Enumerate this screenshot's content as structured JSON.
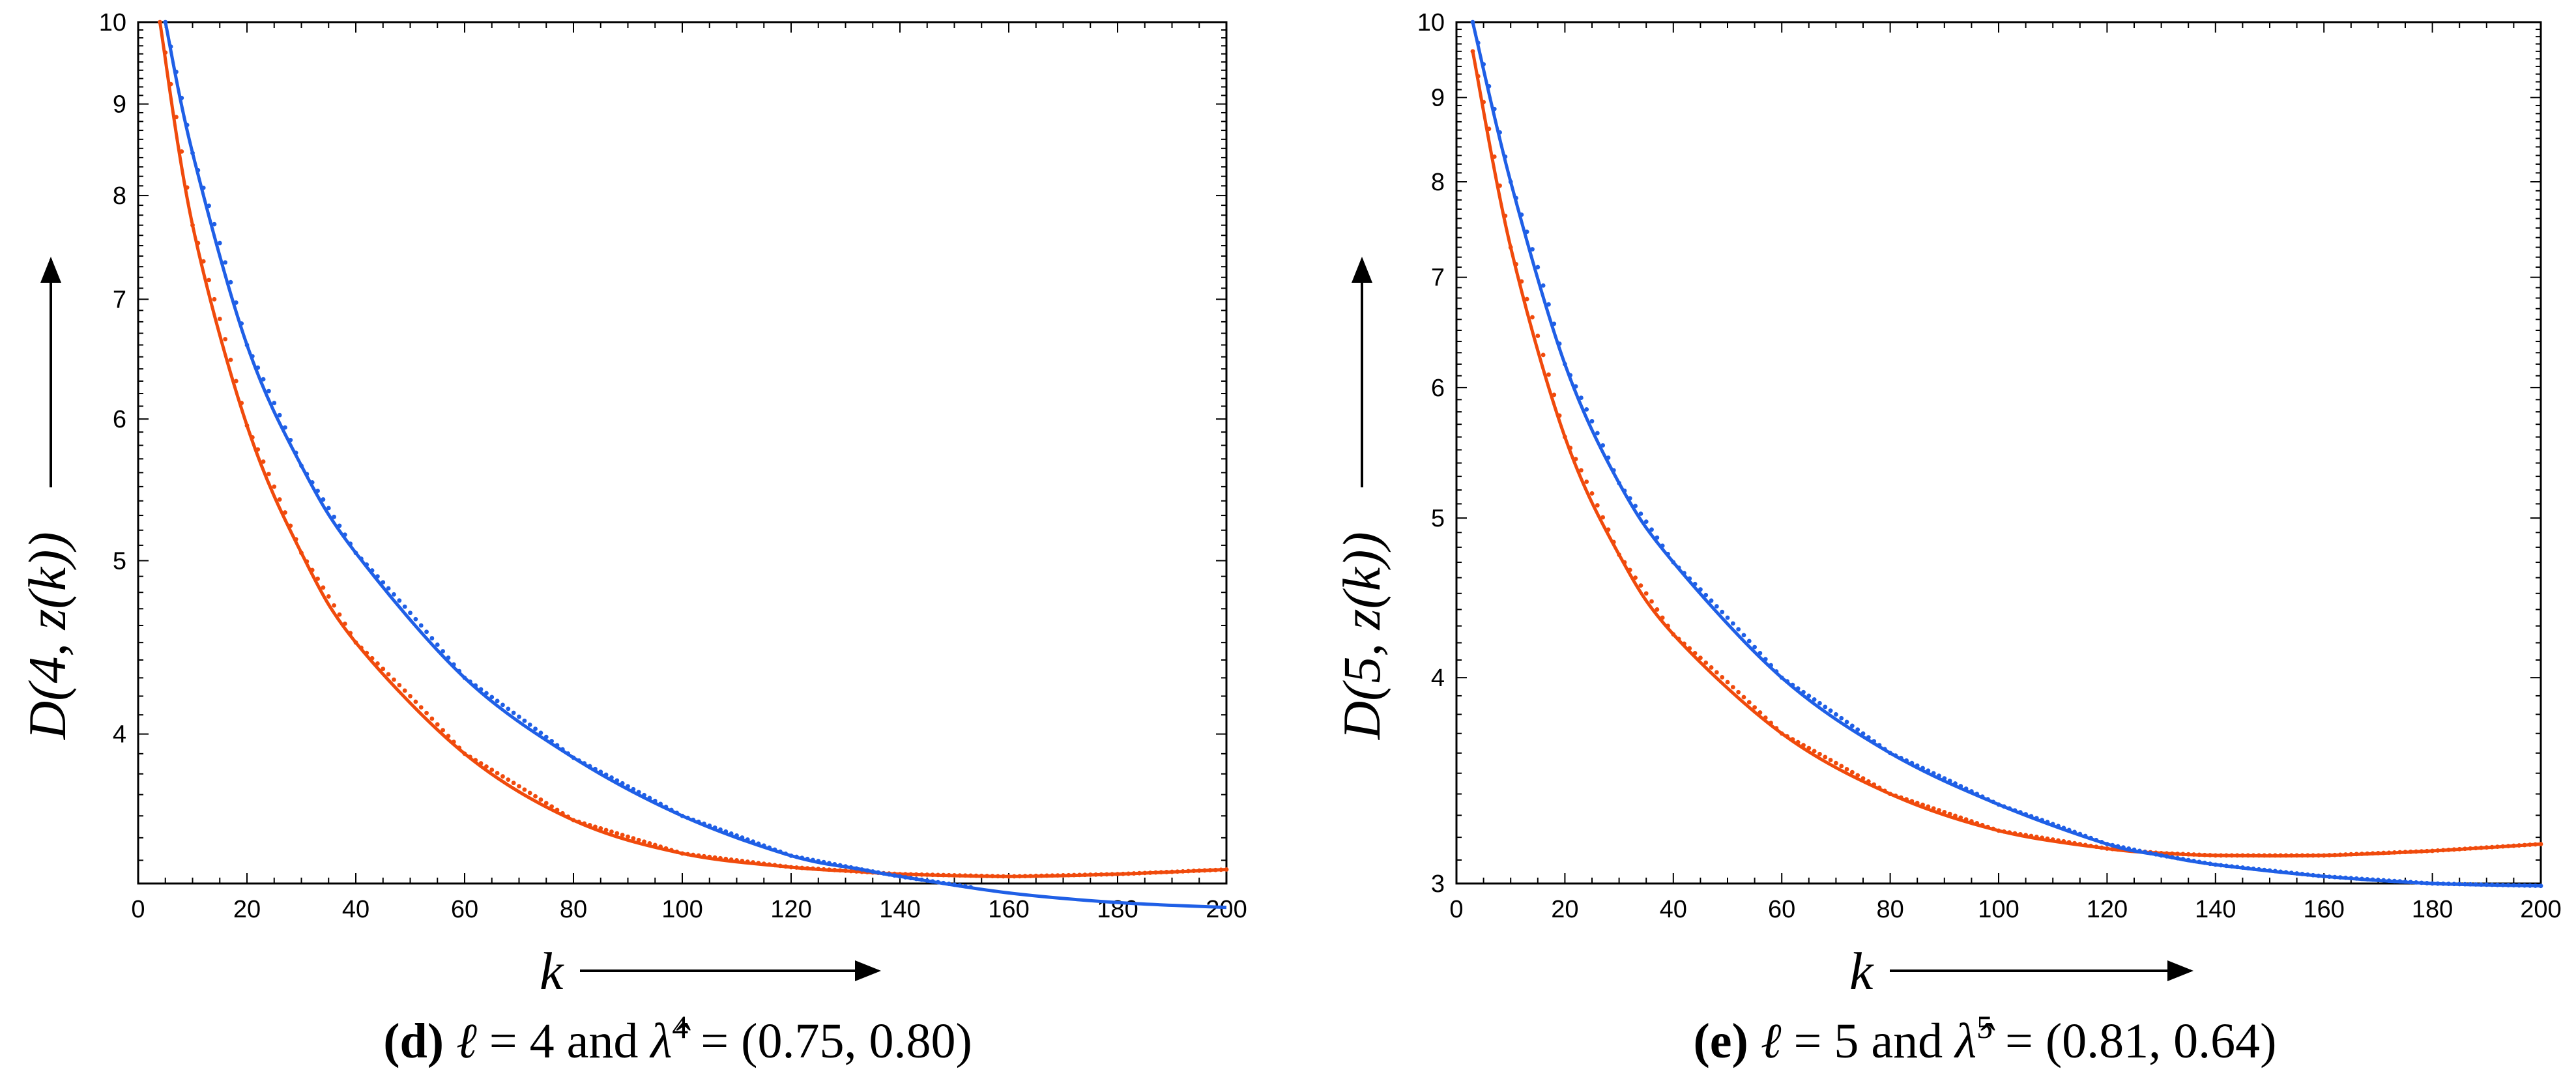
{
  "colors": {
    "series_blue": "#1f5fe6",
    "series_orange": "#f04a0c",
    "axis": "#000000"
  },
  "chart_data": [
    {
      "type": "line",
      "panel": "d",
      "y_scale": "log",
      "xlim": [
        0,
        200
      ],
      "ylim": [
        3.3,
        10
      ],
      "x_ticks": [
        0,
        20,
        40,
        60,
        80,
        100,
        120,
        140,
        160,
        180,
        200
      ],
      "x_tick_labels": [
        "0",
        "20",
        "40",
        "60",
        "80",
        "100",
        "120",
        "140",
        "160",
        "180",
        "200"
      ],
      "y_ticks": [
        4,
        5,
        6,
        7,
        8,
        9,
        10
      ],
      "y_tick_labels": [
        "4",
        "5",
        "6",
        "7",
        "8",
        "9",
        "10"
      ],
      "xlabel": "k",
      "ylabel": "D(4, z(k))",
      "caption": {
        "letter": "(d)",
        "var": "ℓ",
        "eq1": " = 4 and ",
        "hat": "λ̂",
        "sup": "4",
        "eq2": " = (0.75, 0.80)"
      },
      "series": [
        {
          "name": "blue",
          "x": [
            5,
            10,
            20,
            30,
            40,
            60,
            80,
            100,
            120,
            133,
            140,
            160,
            180,
            200
          ],
          "y": [
            10.0,
            8.45,
            6.6,
            5.65,
            5.05,
            4.3,
            3.88,
            3.6,
            3.42,
            3.36,
            3.33,
            3.26,
            3.22,
            3.2
          ]
        },
        {
          "name": "orange",
          "x": [
            4,
            10,
            20,
            30,
            40,
            60,
            80,
            100,
            120,
            133,
            140,
            160,
            180,
            200
          ],
          "y": [
            10.0,
            7.7,
            5.95,
            5.05,
            4.5,
            3.9,
            3.58,
            3.43,
            3.37,
            3.35,
            3.34,
            3.33,
            3.34,
            3.36
          ]
        }
      ]
    },
    {
      "type": "line",
      "panel": "e",
      "y_scale": "log",
      "xlim": [
        0,
        200
      ],
      "ylim": [
        3,
        10
      ],
      "x_ticks": [
        0,
        20,
        40,
        60,
        80,
        100,
        120,
        140,
        160,
        180,
        200
      ],
      "x_tick_labels": [
        "0",
        "20",
        "40",
        "60",
        "80",
        "100",
        "120",
        "140",
        "160",
        "180",
        "200"
      ],
      "y_ticks": [
        3,
        4,
        5,
        6,
        7,
        8,
        9,
        10
      ],
      "y_tick_labels": [
        "3",
        "4",
        "5",
        "6",
        "7",
        "8",
        "9",
        "10"
      ],
      "xlabel": "k",
      "ylabel": "D(5, z(k))",
      "caption": {
        "letter": "(e)",
        "var": "ℓ",
        "eq1": " = 5 and ",
        "hat": "λ̂",
        "sup": "5",
        "eq2": " = (0.81, 0.64)"
      },
      "series": [
        {
          "name": "blue",
          "x": [
            3,
            10,
            20,
            30,
            40,
            60,
            80,
            100,
            120,
            130,
            140,
            160,
            180,
            200
          ],
          "y": [
            10.0,
            8.0,
            6.2,
            5.25,
            4.7,
            4.0,
            3.6,
            3.35,
            3.17,
            3.12,
            3.08,
            3.03,
            3.0,
            2.99
          ]
        },
        {
          "name": "orange",
          "x": [
            3,
            10,
            20,
            30,
            40,
            60,
            80,
            100,
            120,
            130,
            140,
            160,
            180,
            200
          ],
          "y": [
            9.6,
            7.3,
            5.6,
            4.75,
            4.25,
            3.7,
            3.4,
            3.23,
            3.15,
            3.13,
            3.12,
            3.12,
            3.14,
            3.17
          ]
        }
      ]
    }
  ]
}
